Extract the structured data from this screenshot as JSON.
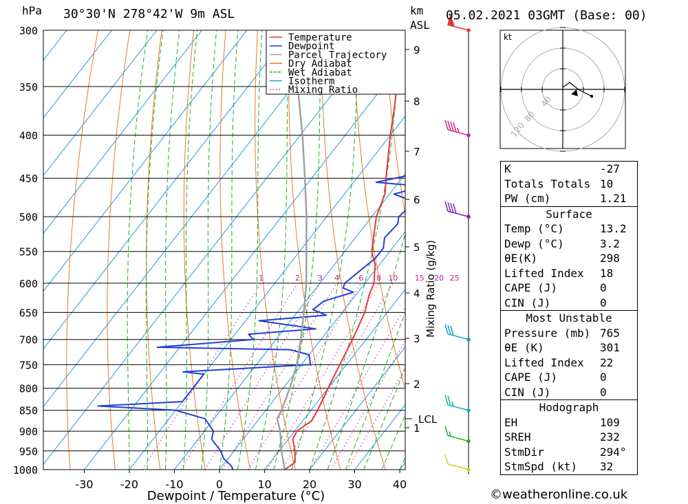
{
  "header": {
    "pressure_unit": "hPa",
    "location": "30°30'N 278°42'W 9m ASL",
    "km_unit": "km",
    "asl_unit": "ASL",
    "datetime": "05.02.2021 03GMT (Base: 00)"
  },
  "chart_data": {
    "type": "line",
    "subtype": "skew-T log-P sounding",
    "xlabel": "Dewpoint / Temperature (°C)",
    "x_ticks": [
      -30,
      -20,
      -10,
      0,
      10,
      20,
      30,
      40
    ],
    "pressure_ticks": [
      300,
      350,
      400,
      450,
      500,
      550,
      600,
      650,
      700,
      750,
      800,
      850,
      900,
      950,
      1000
    ],
    "km_ticks": [
      "9",
      "8",
      "7",
      "6",
      "5",
      "4",
      "3",
      "2",
      "1"
    ],
    "lcl_label": "LCL",
    "mixing_ratio_axis_label": "Mixing Ratio (g/kg)",
    "mixing_ratio_values": [
      "1",
      "2",
      "3",
      "4",
      "6",
      "8",
      "10",
      "15",
      "20",
      "25"
    ],
    "legend": [
      {
        "name": "Temperature",
        "color": "#e8353a",
        "style": "solid"
      },
      {
        "name": "Dewpoint",
        "color": "#1f3fd6",
        "style": "solid"
      },
      {
        "name": "Parcel Trajectory",
        "color": "#a0a0a0",
        "style": "solid"
      },
      {
        "name": "Dry Adiabat",
        "color": "#e8782a",
        "style": "solid"
      },
      {
        "name": "Wet Adiabat",
        "color": "#1cae1c",
        "style": "dashed"
      },
      {
        "name": "Isotherm",
        "color": "#1e9be0",
        "style": "solid"
      },
      {
        "name": "Mixing Ratio",
        "color": "#c0209a",
        "style": "dotted"
      }
    ],
    "series": [
      {
        "name": "Temperature",
        "points": [
          [
            1000,
            14.5
          ],
          [
            980,
            15.5
          ],
          [
            950,
            13.5
          ],
          [
            920,
            11
          ],
          [
            900,
            10.5
          ],
          [
            875,
            12
          ],
          [
            850,
            11.5
          ],
          [
            800,
            10
          ],
          [
            750,
            8.5
          ],
          [
            700,
            7
          ],
          [
            650,
            5
          ],
          [
            620,
            3
          ],
          [
            600,
            2
          ],
          [
            570,
            -1
          ],
          [
            550,
            -4
          ],
          [
            500,
            -9
          ],
          [
            470,
            -11
          ],
          [
            450,
            -13.5
          ],
          [
            400,
            -20
          ],
          [
            370,
            -24
          ],
          [
            350,
            -27
          ],
          [
            320,
            -32
          ],
          [
            300,
            -36
          ]
        ]
      },
      {
        "name": "Dewpoint",
        "points": [
          [
            1000,
            3
          ],
          [
            990,
            2
          ],
          [
            970,
            -1
          ],
          [
            950,
            -3
          ],
          [
            920,
            -7
          ],
          [
            900,
            -8
          ],
          [
            870,
            -12
          ],
          [
            850,
            -20
          ],
          [
            840,
            -38
          ],
          [
            830,
            -20
          ],
          [
            800,
            -20
          ],
          [
            770,
            -20
          ],
          [
            765,
            -25
          ],
          [
            750,
            2
          ],
          [
            730,
            0
          ],
          [
            720,
            -5
          ],
          [
            715,
            -35
          ],
          [
            700,
            -15
          ],
          [
            690,
            -17
          ],
          [
            680,
            -3
          ],
          [
            665,
            -17
          ],
          [
            655,
            -3
          ],
          [
            645,
            -7
          ],
          [
            630,
            -6
          ],
          [
            615,
            -1
          ],
          [
            608,
            -4
          ],
          [
            600,
            -4.5
          ],
          [
            560,
            -2
          ],
          [
            545,
            -2
          ],
          [
            530,
            -3.5
          ],
          [
            510,
            -3
          ],
          [
            500,
            -4
          ],
          [
            480,
            -3
          ],
          [
            470,
            -9
          ],
          [
            460,
            -4
          ],
          [
            455,
            -15
          ],
          [
            445,
            -8
          ],
          [
            430,
            -10
          ],
          [
            400,
            -12
          ],
          [
            380,
            -12
          ],
          [
            360,
            -14
          ],
          [
            340,
            -16
          ],
          [
            320,
            -17
          ],
          [
            300,
            -22
          ]
        ]
      },
      {
        "name": "Parcel Trajectory",
        "points": [
          [
            1000,
            14.5
          ],
          [
            950,
            10.5
          ],
          [
            900,
            6.8
          ],
          [
            870,
            4
          ],
          [
            850,
            3.5
          ],
          [
            800,
            1.5
          ],
          [
            750,
            -1
          ],
          [
            700,
            -4.5
          ],
          [
            650,
            -8.5
          ],
          [
            600,
            -13
          ],
          [
            550,
            -18.5
          ],
          [
            500,
            -24.5
          ],
          [
            450,
            -31.5
          ],
          [
            400,
            -39.5
          ],
          [
            350,
            -49
          ],
          [
            300,
            -60
          ]
        ]
      }
    ]
  },
  "wind_barbs": [
    {
      "pressure": 300,
      "speed_kt": 55,
      "color": "#e8353a"
    },
    {
      "pressure": 400,
      "speed_kt": 45,
      "color": "#d0208a"
    },
    {
      "pressure": 500,
      "speed_kt": 40,
      "color": "#8020c0"
    },
    {
      "pressure": 700,
      "speed_kt": 30,
      "color": "#10a0c0"
    },
    {
      "pressure": 850,
      "speed_kt": 25,
      "color": "#10b0b0"
    },
    {
      "pressure": 925,
      "speed_kt": 15,
      "color": "#20b030"
    },
    {
      "pressure": 1000,
      "speed_kt": 10,
      "color": "#d0d020"
    }
  ],
  "hodograph": {
    "unit": "kt",
    "ring_labels": [
      "40",
      "80",
      "120"
    ]
  },
  "indices": {
    "general": [
      {
        "label": "K",
        "value": "-27"
      },
      {
        "label": "Totals Totals",
        "value": "10"
      },
      {
        "label": "PW (cm)",
        "value": "1.21"
      }
    ],
    "surface_title": "Surface",
    "surface": [
      {
        "label": "Temp (°C)",
        "value": "13.2"
      },
      {
        "label": "Dewp (°C)",
        "value": "3.2"
      },
      {
        "label": "θE(K)",
        "value": "298"
      },
      {
        "label": "Lifted Index",
        "value": "18"
      },
      {
        "label": "CAPE (J)",
        "value": "0"
      },
      {
        "label": "CIN (J)",
        "value": "0"
      }
    ],
    "mu_title": "Most Unstable",
    "mu": [
      {
        "label": "Pressure (mb)",
        "value": "765"
      },
      {
        "label": "θE (K)",
        "value": "301"
      },
      {
        "label": "Lifted Index",
        "value": "22"
      },
      {
        "label": "CAPE (J)",
        "value": "0"
      },
      {
        "label": "CIN (J)",
        "value": "0"
      }
    ],
    "hodo_title": "Hodograph",
    "hodo": [
      {
        "label": "EH",
        "value": "109"
      },
      {
        "label": "SREH",
        "value": "232"
      },
      {
        "label": "StmDir",
        "value": "294°"
      },
      {
        "label": "StmSpd (kt)",
        "value": "32"
      }
    ]
  },
  "footer": {
    "credit": "©weatheronline.co.uk"
  }
}
